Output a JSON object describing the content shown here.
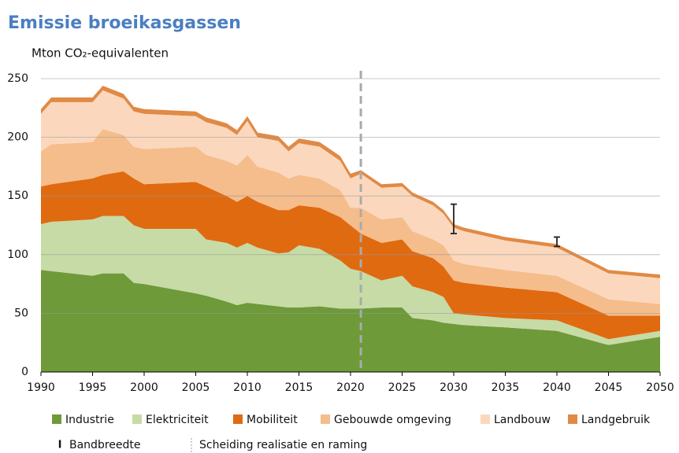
{
  "chart_data": {
    "type": "stacked_area",
    "title": "Emissie broeikasgassen",
    "ylabel": "Mton CO₂-equivalenten",
    "x": [
      1990,
      1991,
      1995,
      1996,
      1998,
      1999,
      2000,
      2005,
      2006,
      2008,
      2009,
      2010,
      2011,
      2013,
      2014,
      2015,
      2017,
      2019,
      2020,
      2021,
      2023,
      2025,
      2026,
      2028,
      2029,
      2030,
      2031,
      2035,
      2040,
      2045,
      2050
    ],
    "series": [
      {
        "name": "Industrie",
        "color": "#6e9a3a",
        "values": [
          87,
          86,
          82,
          84,
          84,
          76,
          75,
          67,
          65,
          60,
          57,
          59,
          58,
          56,
          55,
          55,
          56,
          54,
          54,
          54,
          55,
          55,
          46,
          44,
          42,
          41,
          40,
          38,
          35,
          23,
          30
        ]
      },
      {
        "name": "Elektriciteit",
        "color": "#c6dba6",
        "values": [
          39,
          42,
          48,
          49,
          49,
          49,
          47,
          55,
          48,
          50,
          49,
          51,
          48,
          45,
          47,
          53,
          49,
          41,
          34,
          32,
          23,
          27,
          27,
          24,
          22,
          9,
          9,
          8,
          9,
          5,
          5
        ]
      },
      {
        "name": "Mobiliteit",
        "color": "#e06a10",
        "values": [
          32,
          32,
          35,
          35,
          38,
          40,
          38,
          40,
          45,
          40,
          39,
          40,
          39,
          37,
          36,
          34,
          35,
          37,
          37,
          32,
          32,
          31,
          30,
          29,
          26,
          28,
          27,
          26,
          24,
          20,
          13
        ]
      },
      {
        "name": "Gebouwde omgeving",
        "color": "#f5bd8c",
        "values": [
          30,
          34,
          31,
          39,
          31,
          27,
          30,
          30,
          27,
          30,
          31,
          35,
          30,
          32,
          27,
          26,
          25,
          23,
          15,
          22,
          20,
          19,
          17,
          16,
          18,
          17,
          16,
          15,
          14,
          14,
          10
        ]
      },
      {
        "name": "Landbouw",
        "color": "#fbd8bd",
        "values": [
          32,
          36,
          34,
          33,
          31,
          30,
          30,
          26,
          28,
          28,
          26,
          29,
          25,
          27,
          23,
          27,
          27,
          25,
          25,
          29,
          27,
          26,
          30,
          29,
          27,
          28,
          28,
          25,
          24,
          22,
          22
        ]
      },
      {
        "name": "Landgebruik",
        "color": "#e08a46",
        "values": [
          4,
          4,
          4,
          4,
          4,
          4,
          4,
          4,
          4,
          4,
          4,
          4,
          4,
          4,
          4,
          4,
          4,
          4,
          4,
          3,
          3,
          3,
          3,
          3,
          3,
          3,
          3,
          3,
          3,
          3,
          3
        ]
      }
    ],
    "bands": [
      {
        "x": 2030,
        "low": 118,
        "high": 143
      },
      {
        "x": 2040,
        "low": 107,
        "high": 115
      }
    ],
    "band_label": "Bandbreedte",
    "divider_x": 2021,
    "divider_label": "Scheiding realisatie en raming",
    "xlim": [
      1990,
      2050
    ],
    "xticks": [
      1990,
      1995,
      2000,
      2005,
      2010,
      2015,
      2020,
      2025,
      2030,
      2035,
      2040,
      2045,
      2050
    ],
    "ylim": [
      0,
      250
    ],
    "yticks": [
      0,
      50,
      100,
      150,
      200,
      250
    ],
    "grid": true
  }
}
